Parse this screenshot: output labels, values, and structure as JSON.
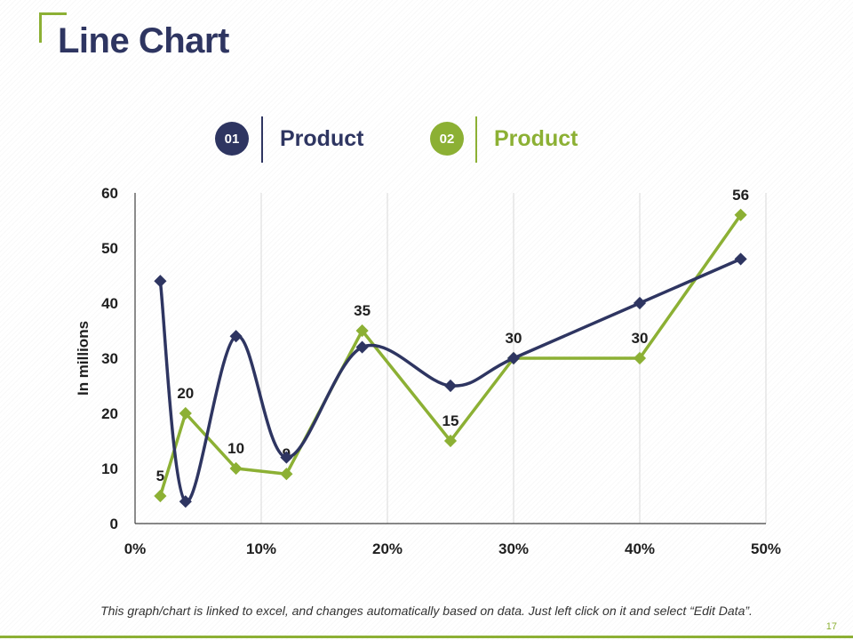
{
  "slide": {
    "title": "Line Chart",
    "footnote": "This graph/chart is linked to excel, and changes automatically based on data. Just left click on it and select “Edit Data”.",
    "page_number": "17"
  },
  "colors": {
    "navy": "#2e3561",
    "green": "#8cb034",
    "grid": "#d9d9d9",
    "axis": "#404040",
    "text": "#1f1f1f"
  },
  "legend": [
    {
      "badge": "01",
      "label": "Product",
      "color": "#2e3561"
    },
    {
      "badge": "02",
      "label": "Product",
      "color": "#8cb034"
    }
  ],
  "chart_data": {
    "type": "line",
    "title": "",
    "xlabel": "",
    "ylabel": "In millions",
    "xlim": [
      0,
      50
    ],
    "ylim": [
      0,
      60
    ],
    "x_ticks": [
      "0%",
      "10%",
      "20%",
      "30%",
      "40%",
      "50%"
    ],
    "y_ticks": [
      "0",
      "10",
      "20",
      "30",
      "40",
      "50",
      "60"
    ],
    "grid": "vertical",
    "series": [
      {
        "name": "Product 01",
        "smooth": true,
        "color": "#2e3561",
        "x": [
          2,
          4,
          8,
          12,
          18,
          25,
          30,
          40,
          48
        ],
        "values": [
          44,
          4,
          34,
          12,
          32,
          25,
          30,
          40,
          48
        ],
        "labels": []
      },
      {
        "name": "Product 02",
        "smooth": false,
        "color": "#8cb034",
        "x": [
          2,
          4,
          8,
          12,
          18,
          25,
          30,
          40,
          48
        ],
        "values": [
          5,
          20,
          10,
          9,
          35,
          15,
          30,
          30,
          56
        ],
        "labels": [
          "5",
          "20",
          "10",
          "9",
          "35",
          "15",
          "30",
          "30",
          "56"
        ]
      }
    ]
  }
}
